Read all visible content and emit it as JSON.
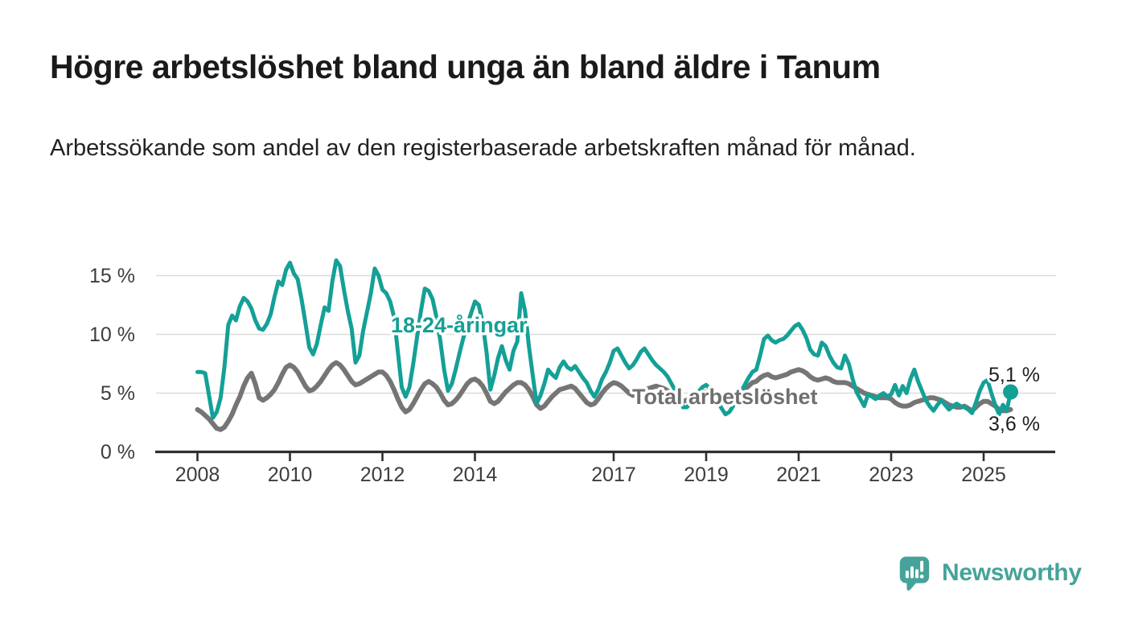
{
  "header": {
    "title": "Högre arbetslöshet bland unga än bland äldre i Tanum",
    "subtitle": "Arbetssökande som andel av den registerbaserade arbetskraften månad för månad."
  },
  "chart_data": {
    "type": "line",
    "unit": "percent",
    "frequency": "monthly",
    "x_start": "2008-01",
    "x_end": "2025-08",
    "ylim": [
      0,
      16.5
    ],
    "grid": "horizontal",
    "legend_position": "inline-labels",
    "y_tick_values": [
      0,
      5,
      10,
      15
    ],
    "y_tick_labels": [
      "0 %",
      "5 %",
      "10 %",
      "15 %"
    ],
    "x_tick_years": [
      2008,
      2010,
      2012,
      2014,
      2017,
      2019,
      2021,
      2023,
      2025
    ],
    "x_tick_labels": [
      "2008",
      "2010",
      "2012",
      "2014",
      "2017",
      "2019",
      "2021",
      "2023",
      "2025"
    ],
    "series": [
      {
        "name": "18-24-åringar",
        "label": "18-24-åringar",
        "color": "#14a096",
        "end_value": 5.1,
        "end_value_label": "5,1 %",
        "end_marker": "dot",
        "values": [
          6.8,
          6.8,
          6.7,
          4.8,
          2.9,
          3.4,
          4.6,
          7.2,
          10.8,
          11.6,
          11.2,
          12.4,
          13.1,
          12.8,
          12.2,
          11.2,
          10.5,
          10.4,
          10.9,
          11.7,
          13.2,
          14.5,
          14.2,
          15.5,
          16.1,
          15.2,
          14.7,
          13.0,
          11.0,
          8.9,
          8.3,
          9.2,
          10.8,
          12.3,
          12.0,
          14.5,
          16.3,
          15.8,
          13.8,
          12.0,
          10.5,
          7.6,
          8.2,
          10.3,
          11.9,
          13.5,
          15.6,
          15.0,
          13.8,
          13.5,
          12.8,
          11.5,
          8.5,
          5.5,
          4.7,
          5.5,
          7.5,
          9.8,
          12.0,
          13.9,
          13.7,
          13.0,
          11.5,
          9.5,
          7.0,
          5.2,
          5.8,
          7.0,
          8.4,
          9.7,
          10.8,
          11.8,
          12.8,
          12.5,
          11.0,
          8.5,
          5.3,
          6.5,
          8.0,
          9.0,
          7.8,
          7.0,
          8.6,
          9.4,
          13.5,
          12.0,
          9.0,
          6.5,
          4.1,
          4.8,
          5.8,
          7.0,
          6.6,
          6.3,
          7.2,
          7.7,
          7.2,
          7.0,
          7.3,
          6.8,
          6.3,
          5.9,
          5.2,
          4.7,
          5.3,
          6.2,
          6.8,
          7.6,
          8.6,
          8.8,
          8.2,
          7.6,
          7.1,
          7.4,
          7.9,
          8.5,
          8.8,
          8.3,
          7.8,
          7.4,
          7.1,
          6.8,
          6.4,
          5.8,
          5.2,
          4.6,
          3.8,
          3.8,
          4.2,
          4.6,
          5.1,
          5.5,
          5.7,
          5.4,
          4.9,
          4.3,
          3.7,
          3.2,
          3.4,
          3.9,
          4.5,
          5.1,
          5.7,
          6.3,
          6.8,
          7.0,
          8.2,
          9.6,
          9.9,
          9.5,
          9.3,
          9.5,
          9.6,
          9.9,
          10.3,
          10.7,
          10.9,
          10.4,
          9.7,
          8.7,
          8.3,
          8.2,
          9.3,
          9.0,
          8.2,
          7.6,
          7.2,
          7.1,
          8.2,
          7.5,
          6.2,
          5.1,
          4.5,
          3.9,
          4.9,
          4.7,
          4.5,
          4.8,
          5.0,
          4.7,
          4.9,
          5.7,
          4.8,
          5.6,
          5.0,
          6.2,
          7.0,
          6.0,
          5.2,
          4.4,
          3.9,
          3.5,
          4.0,
          4.4,
          4.0,
          3.6,
          3.9,
          4.1,
          3.9,
          3.8,
          3.6,
          3.3,
          4.2,
          5.2,
          5.9,
          6.1,
          5.0,
          4.0,
          3.2,
          4.0,
          3.5,
          5.1
        ]
      },
      {
        "name": "Total arbetslöshet",
        "label": "Total arbetslöshet",
        "color": "#757575",
        "end_value": 3.6,
        "end_value_label": "3,6 %",
        "end_marker": "none",
        "values": [
          3.6,
          3.4,
          3.1,
          2.8,
          2.4,
          2.0,
          1.9,
          2.1,
          2.6,
          3.2,
          4.0,
          4.7,
          5.6,
          6.3,
          6.7,
          5.8,
          4.6,
          4.4,
          4.6,
          4.9,
          5.3,
          5.9,
          6.6,
          7.2,
          7.4,
          7.2,
          6.8,
          6.2,
          5.6,
          5.2,
          5.3,
          5.6,
          6.0,
          6.5,
          7.0,
          7.4,
          7.6,
          7.4,
          7.0,
          6.5,
          6.0,
          5.7,
          5.8,
          6.0,
          6.2,
          6.4,
          6.6,
          6.8,
          6.8,
          6.5,
          6.0,
          5.3,
          4.5,
          3.8,
          3.4,
          3.6,
          4.1,
          4.7,
          5.3,
          5.8,
          6.0,
          5.8,
          5.5,
          5.0,
          4.4,
          4.0,
          4.1,
          4.4,
          4.8,
          5.3,
          5.8,
          6.1,
          6.2,
          6.0,
          5.6,
          5.0,
          4.3,
          4.1,
          4.3,
          4.7,
          5.1,
          5.4,
          5.7,
          5.9,
          5.9,
          5.7,
          5.3,
          4.7,
          4.0,
          3.7,
          3.9,
          4.3,
          4.7,
          5.0,
          5.3,
          5.4,
          5.5,
          5.6,
          5.4,
          5.0,
          4.6,
          4.2,
          4.0,
          4.1,
          4.5,
          5.0,
          5.4,
          5.7,
          5.9,
          5.8,
          5.6,
          5.3,
          5.0,
          4.8,
          4.9,
          5.1,
          5.3,
          5.4,
          5.5,
          5.6,
          5.5,
          5.4,
          5.2,
          4.9,
          4.6,
          4.4,
          4.3,
          4.4,
          4.6,
          4.8,
          5.0,
          5.1,
          5.1,
          5.0,
          4.8,
          4.5,
          4.3,
          4.2,
          4.3,
          4.5,
          4.7,
          5.0,
          5.3,
          5.6,
          5.9,
          6.0,
          6.3,
          6.5,
          6.6,
          6.4,
          6.3,
          6.4,
          6.5,
          6.6,
          6.8,
          6.9,
          7.0,
          6.9,
          6.7,
          6.4,
          6.2,
          6.1,
          6.2,
          6.3,
          6.2,
          6.0,
          5.9,
          5.9,
          5.9,
          5.8,
          5.6,
          5.4,
          5.2,
          5.0,
          4.9,
          4.8,
          4.7,
          4.6,
          4.6,
          4.6,
          4.5,
          4.2,
          4.0,
          3.9,
          3.9,
          4.0,
          4.2,
          4.3,
          4.4,
          4.5,
          4.6,
          4.6,
          4.5,
          4.4,
          4.2,
          4.0,
          3.9,
          3.8,
          3.8,
          3.9,
          3.7,
          3.5,
          3.8,
          4.1,
          4.3,
          4.3,
          4.1,
          3.9,
          3.6,
          3.5,
          3.5,
          3.6
        ]
      }
    ]
  },
  "footer": {
    "brand": "Newsworthy"
  },
  "colors": {
    "accent_teal": "#14a096",
    "series_gray": "#757575",
    "series_label_gray": "#6f6f6f",
    "gridline": "#dcdcdc",
    "axis": "#2f2f2f",
    "text_dark": "#1a1a1a",
    "logo_teal": "#45a39a"
  }
}
